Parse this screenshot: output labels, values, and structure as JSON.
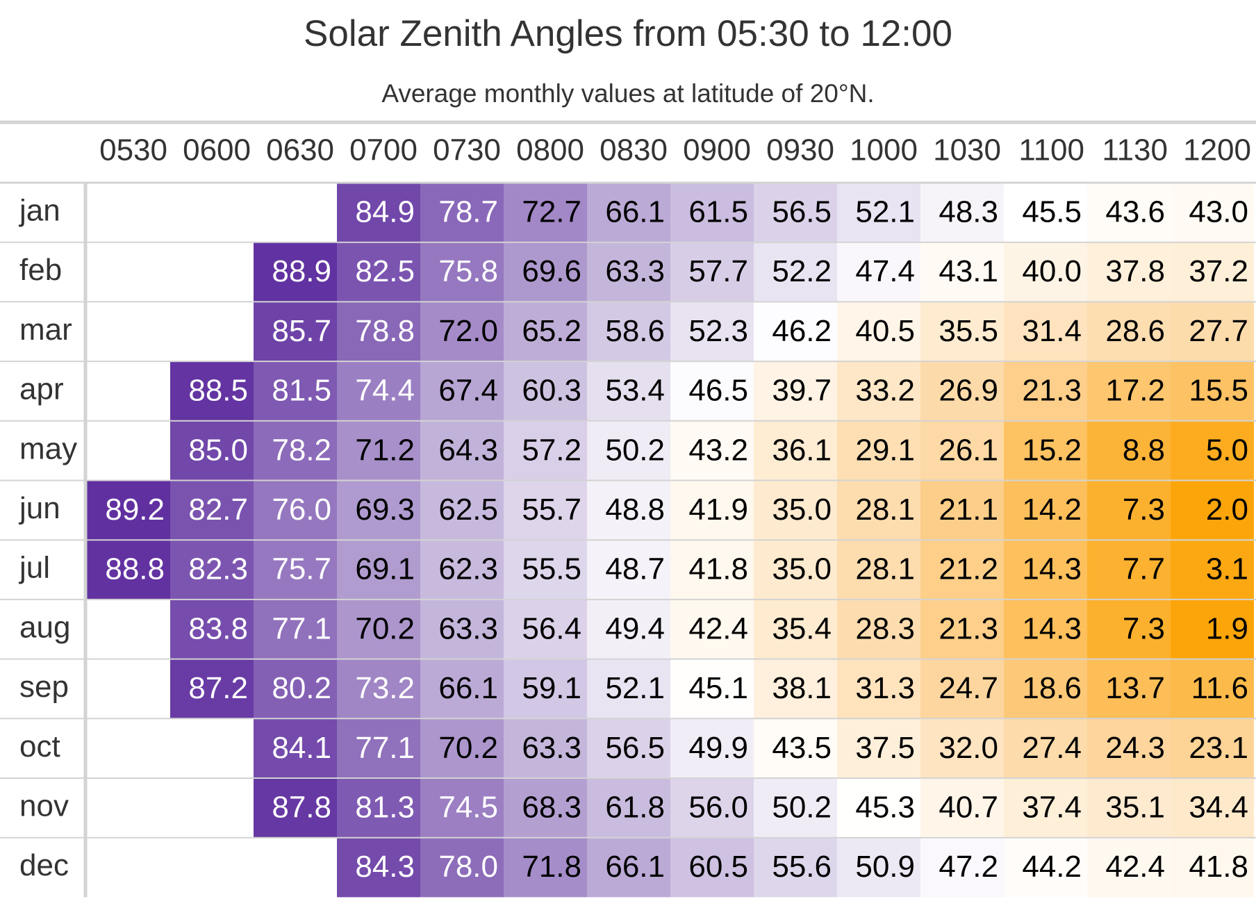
{
  "header": {
    "title": "Solar Zenith Angles from 05:30 to 12:00",
    "subtitle": "Average monthly values at latitude of 20°N."
  },
  "palette": [
    "#fca50a",
    "#fdd49a",
    "#ffffff",
    "#b7a5d3",
    "#6030a0"
  ],
  "table": {
    "columns": [
      "0530",
      "0600",
      "0630",
      "0700",
      "0730",
      "0800",
      "0830",
      "0900",
      "0930",
      "1000",
      "1030",
      "1100",
      "1130",
      "1200"
    ],
    "rows": [
      {
        "label": "jan",
        "values": [
          null,
          null,
          null,
          "84.9",
          "78.7",
          "72.7",
          "66.1",
          "61.5",
          "56.5",
          "52.1",
          "48.3",
          "45.5",
          "43.6",
          "43.0"
        ]
      },
      {
        "label": "feb",
        "values": [
          null,
          null,
          "88.9",
          "82.5",
          "75.8",
          "69.6",
          "63.3",
          "57.7",
          "52.2",
          "47.4",
          "43.1",
          "40.0",
          "37.8",
          "37.2"
        ]
      },
      {
        "label": "mar",
        "values": [
          null,
          null,
          "85.7",
          "78.8",
          "72.0",
          "65.2",
          "58.6",
          "52.3",
          "46.2",
          "40.5",
          "35.5",
          "31.4",
          "28.6",
          "27.7"
        ]
      },
      {
        "label": "apr",
        "values": [
          null,
          "88.5",
          "81.5",
          "74.4",
          "67.4",
          "60.3",
          "53.4",
          "46.5",
          "39.7",
          "33.2",
          "26.9",
          "21.3",
          "17.2",
          "15.5"
        ]
      },
      {
        "label": "may",
        "values": [
          null,
          "85.0",
          "78.2",
          "71.2",
          "64.3",
          "57.2",
          "50.2",
          "43.2",
          "36.1",
          "29.1",
          "26.1",
          "15.2",
          "8.8",
          "5.0"
        ]
      },
      {
        "label": "jun",
        "values": [
          "89.2",
          "82.7",
          "76.0",
          "69.3",
          "62.5",
          "55.7",
          "48.8",
          "41.9",
          "35.0",
          "28.1",
          "21.1",
          "14.2",
          "7.3",
          "2.0"
        ]
      },
      {
        "label": "jul",
        "values": [
          "88.8",
          "82.3",
          "75.7",
          "69.1",
          "62.3",
          "55.5",
          "48.7",
          "41.8",
          "35.0",
          "28.1",
          "21.2",
          "14.3",
          "7.7",
          "3.1"
        ]
      },
      {
        "label": "aug",
        "values": [
          null,
          "83.8",
          "77.1",
          "70.2",
          "63.3",
          "56.4",
          "49.4",
          "42.4",
          "35.4",
          "28.3",
          "21.3",
          "14.3",
          "7.3",
          "1.9"
        ]
      },
      {
        "label": "sep",
        "values": [
          null,
          "87.2",
          "80.2",
          "73.2",
          "66.1",
          "59.1",
          "52.1",
          "45.1",
          "38.1",
          "31.3",
          "24.7",
          "18.6",
          "13.7",
          "11.6"
        ]
      },
      {
        "label": "oct",
        "values": [
          null,
          null,
          "84.1",
          "77.1",
          "70.2",
          "63.3",
          "56.5",
          "49.9",
          "43.5",
          "37.5",
          "32.0",
          "27.4",
          "24.3",
          "23.1"
        ]
      },
      {
        "label": "nov",
        "values": [
          null,
          null,
          "87.8",
          "81.3",
          "74.5",
          "68.3",
          "61.8",
          "56.0",
          "50.2",
          "45.3",
          "40.7",
          "37.4",
          "35.1",
          "34.4"
        ]
      },
      {
        "label": "dec",
        "values": [
          null,
          null,
          null,
          "84.3",
          "78.0",
          "71.8",
          "66.1",
          "60.5",
          "55.6",
          "50.9",
          "47.2",
          "44.2",
          "42.4",
          "41.8"
        ]
      }
    ]
  }
}
